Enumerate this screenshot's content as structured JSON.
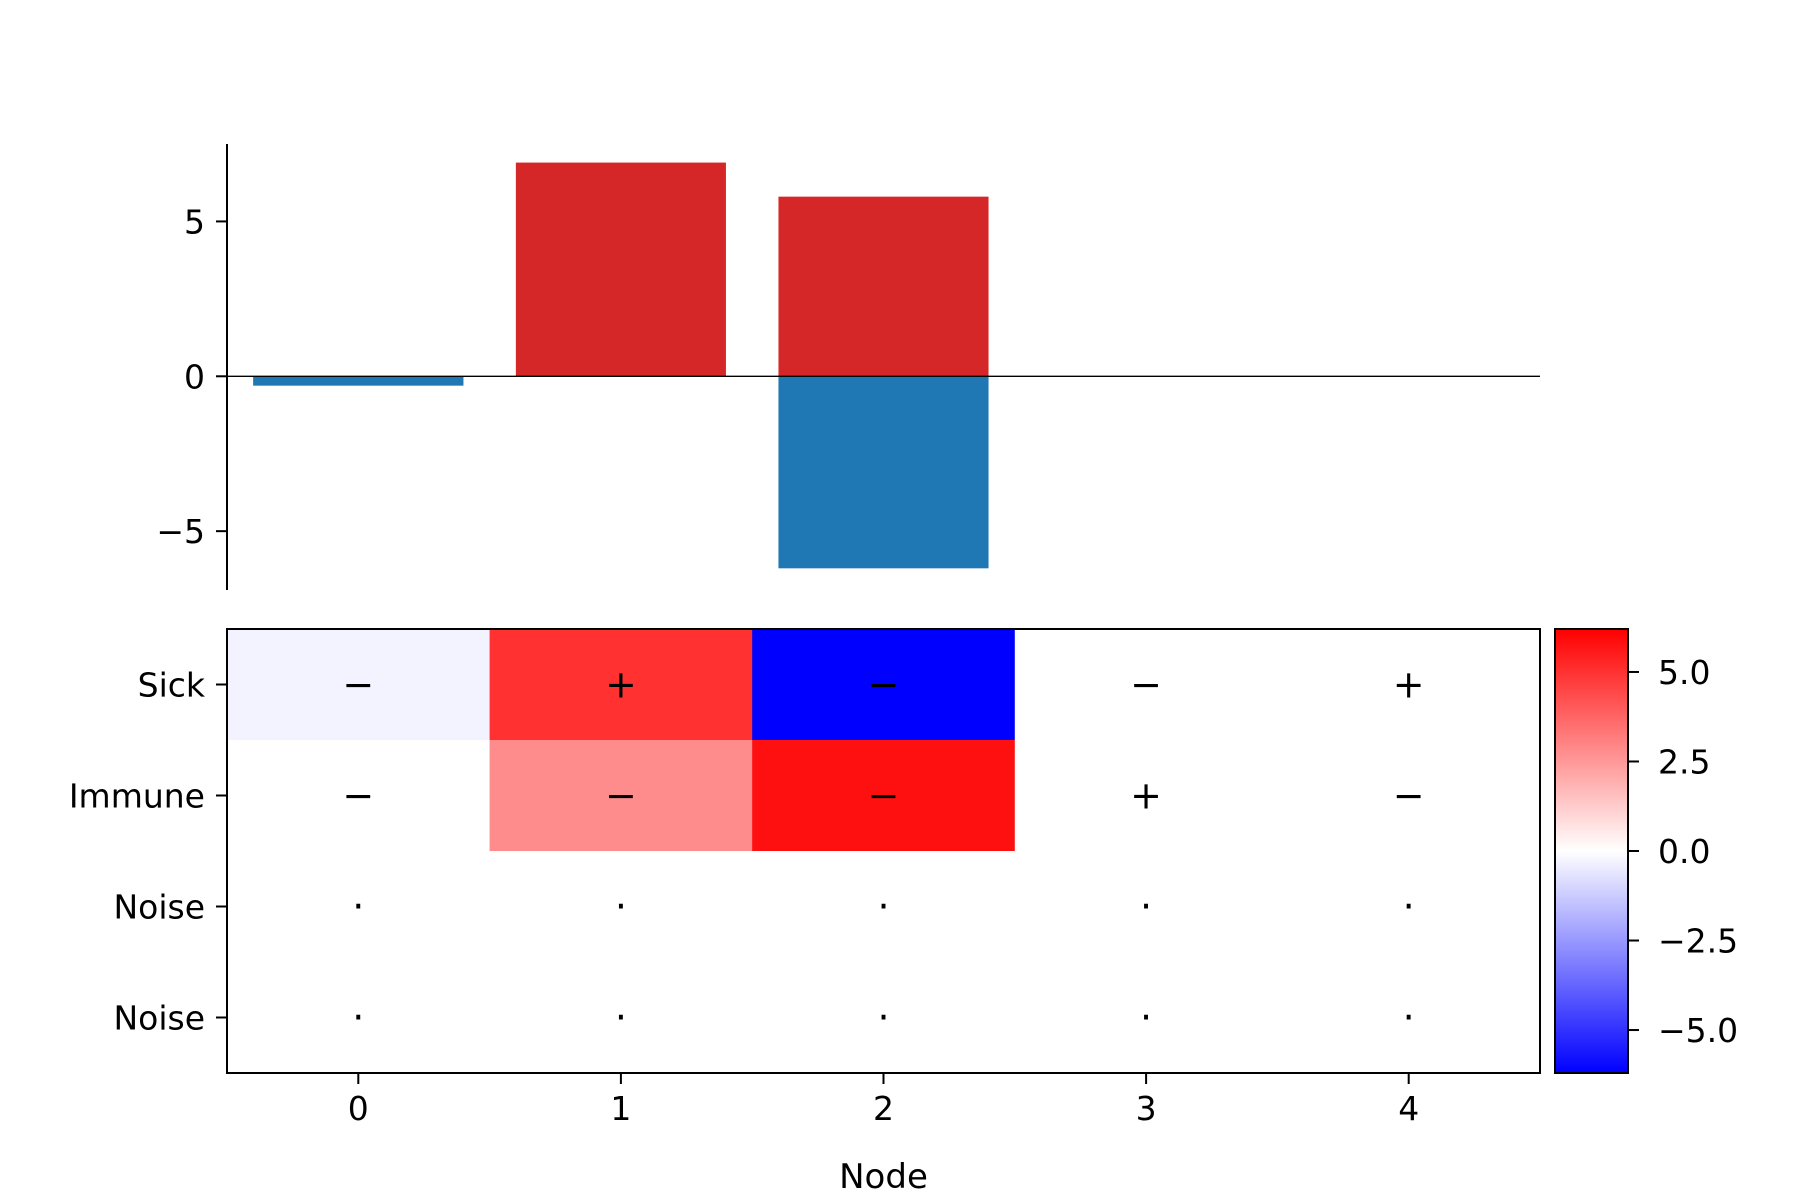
{
  "chart_data": [
    {
      "type": "bar",
      "categories": [
        0,
        1,
        2,
        3,
        4
      ],
      "series": [
        {
          "values": [
            -0.3,
            6.9,
            5.8,
            0,
            0
          ],
          "color": "#d62728"
        },
        {
          "values": [
            -0.3,
            0,
            -6.2,
            0,
            0
          ],
          "color": "#1f77b4"
        }
      ],
      "ylim": [
        -6.9,
        7.5
      ],
      "yticks": [
        5,
        0,
        -5
      ],
      "ytick_labels": [
        "5",
        "0",
        "−5"
      ],
      "zero_line": true
    },
    {
      "type": "heatmap",
      "rows": [
        "Sick",
        "Immune",
        "Noise",
        "Noise"
      ],
      "columns": [
        "0",
        "1",
        "2",
        "3",
        "4"
      ],
      "xlabel": "Node",
      "values": [
        [
          -0.3,
          5.0,
          -6.2,
          0,
          0
        ],
        [
          0,
          2.8,
          5.8,
          0,
          0
        ],
        [
          0,
          0,
          0,
          0,
          0
        ],
        [
          0,
          0,
          0,
          0,
          0
        ]
      ],
      "signs": [
        [
          "−",
          "+",
          "−",
          "−",
          "+"
        ],
        [
          "−",
          "−",
          "−",
          "+",
          "−"
        ],
        [
          "·",
          "·",
          "·",
          "·",
          "·"
        ],
        [
          "·",
          "·",
          "·",
          "·",
          "·"
        ]
      ],
      "colormap": [
        "#0000ff",
        "#ffffff",
        "#ff0000"
      ],
      "colorbar": {
        "range": [
          -6.2,
          6.2
        ],
        "ticks": [
          5.0,
          2.5,
          0.0,
          -2.5,
          -5.0
        ],
        "tick_labels": [
          "5.0",
          "2.5",
          "0.0",
          "−2.5",
          "−5.0"
        ]
      }
    }
  ]
}
